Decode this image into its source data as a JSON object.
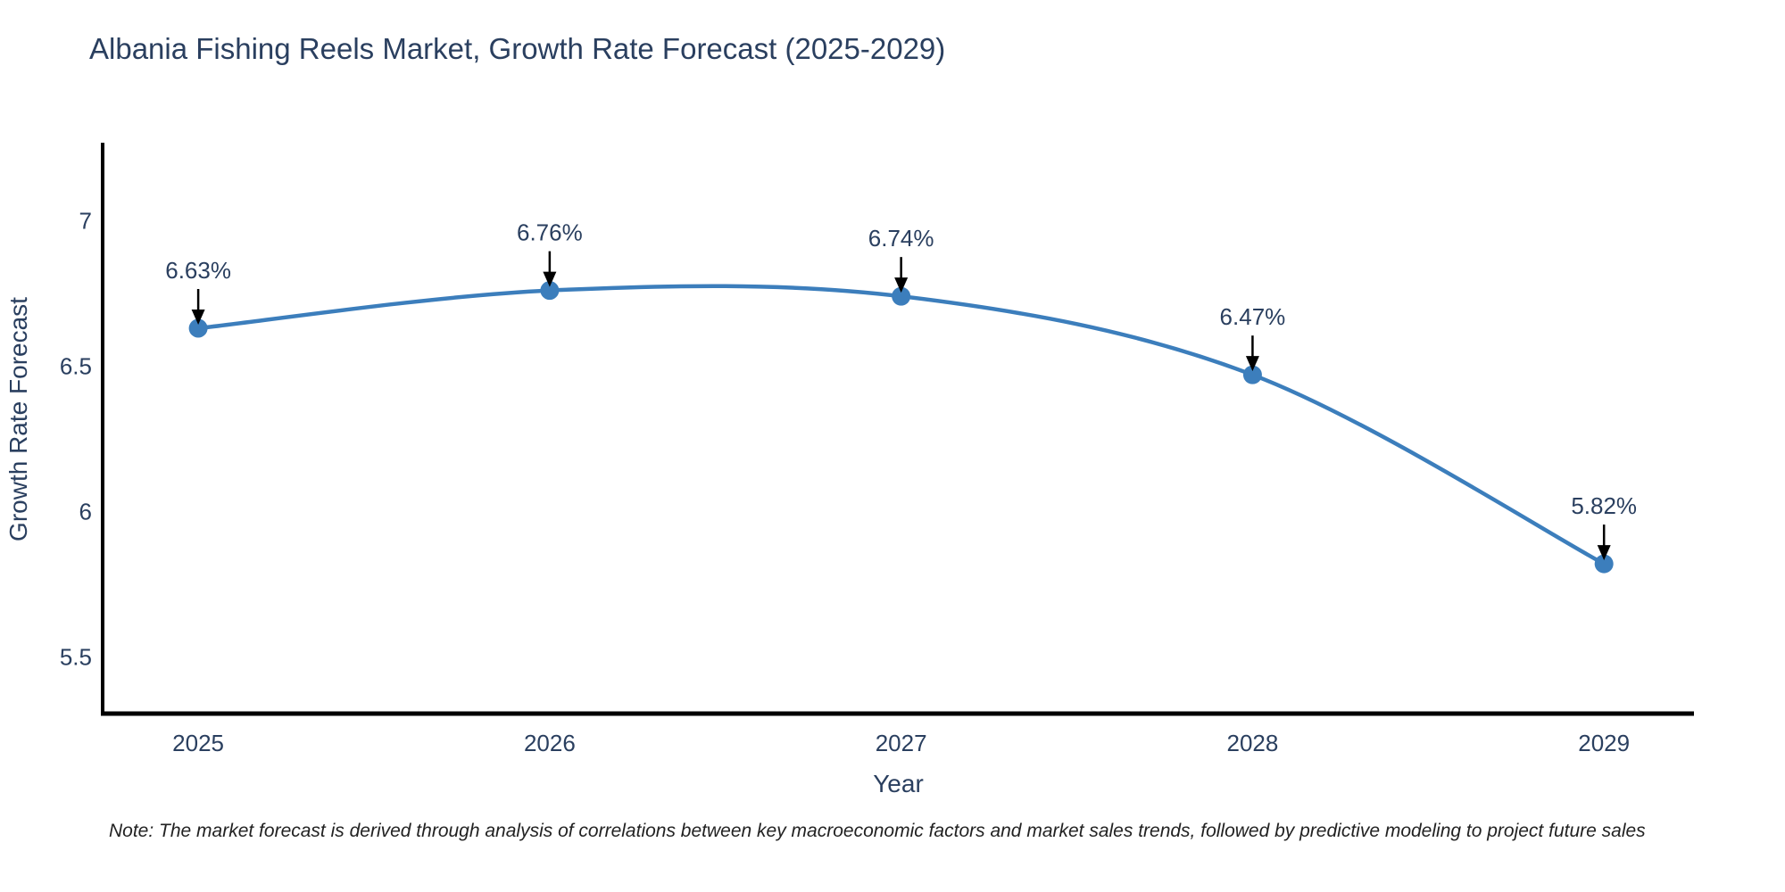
{
  "title": "Albania Fishing Reels Market, Growth Rate Forecast (2025-2029)",
  "note": "Note: The market forecast is derived through analysis of correlations between key macroeconomic factors and market sales trends, followed by predictive modeling to project future sales",
  "chart_data": {
    "type": "line",
    "line_shape": "spline",
    "x": [
      2025,
      2026,
      2027,
      2028,
      2029
    ],
    "values": [
      6.63,
      6.76,
      6.74,
      6.47,
      5.82
    ],
    "point_labels": [
      "6.63%",
      "6.76%",
      "6.74%",
      "6.47%",
      "5.82%"
    ],
    "xlabel": "Year",
    "ylabel": "Growth Rate Forecast",
    "xticks": [
      2025,
      2026,
      2027,
      2028,
      2029
    ],
    "xtick_labels": [
      "2025",
      "2026",
      "2027",
      "2028",
      "2029"
    ],
    "yticks": [
      5.5,
      6,
      6.5,
      7
    ],
    "ytick_labels": [
      "5.5",
      "6",
      "6.5",
      "7"
    ],
    "xlim": [
      2024.728,
      2029.256
    ],
    "ylim": [
      5.305,
      7.268
    ],
    "grid": false,
    "legend": "none",
    "colors": {
      "line": "#3C7EBC",
      "marker": "#3C7EBC",
      "axis": "#000000",
      "text": "#2a3f5f",
      "annotation_arrow": "#000000",
      "background": "#ffffff"
    }
  }
}
